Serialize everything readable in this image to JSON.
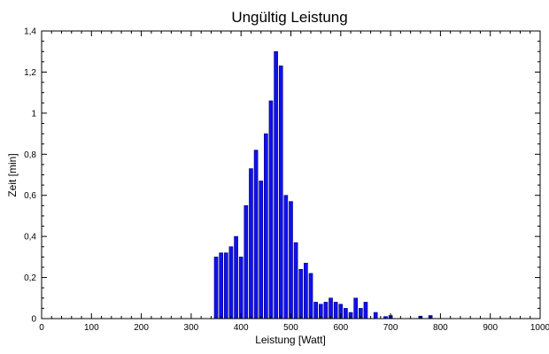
{
  "chart_data": {
    "type": "bar",
    "title": "Ungültig Leistung",
    "xlabel": "Leistung [Watt]",
    "ylabel": "Zeit [min]",
    "xlim": [
      0,
      1000
    ],
    "ylim": [
      0,
      1.4
    ],
    "x_ticks": [
      "0",
      "100",
      "200",
      "300",
      "400",
      "500",
      "600",
      "700",
      "800",
      "900",
      "1000"
    ],
    "y_ticks": [
      "0",
      "0,2",
      "0,4",
      "0,6",
      "0,8",
      "1",
      "1,2",
      "1,4"
    ],
    "grid": false,
    "bar_color": "#1010ee",
    "bar_edge_color": "#00007a",
    "bin_width": 10,
    "bars": [
      {
        "x": 350,
        "y": 0.3
      },
      {
        "x": 360,
        "y": 0.32
      },
      {
        "x": 370,
        "y": 0.32
      },
      {
        "x": 380,
        "y": 0.35
      },
      {
        "x": 390,
        "y": 0.4
      },
      {
        "x": 400,
        "y": 0.3
      },
      {
        "x": 410,
        "y": 0.55
      },
      {
        "x": 420,
        "y": 0.73
      },
      {
        "x": 430,
        "y": 0.82
      },
      {
        "x": 440,
        "y": 0.67
      },
      {
        "x": 450,
        "y": 0.9
      },
      {
        "x": 460,
        "y": 1.06
      },
      {
        "x": 470,
        "y": 1.3
      },
      {
        "x": 480,
        "y": 1.23
      },
      {
        "x": 490,
        "y": 0.6
      },
      {
        "x": 500,
        "y": 0.57
      },
      {
        "x": 510,
        "y": 0.37
      },
      {
        "x": 520,
        "y": 0.24
      },
      {
        "x": 530,
        "y": 0.27
      },
      {
        "x": 540,
        "y": 0.22
      },
      {
        "x": 550,
        "y": 0.08
      },
      {
        "x": 560,
        "y": 0.07
      },
      {
        "x": 570,
        "y": 0.08
      },
      {
        "x": 580,
        "y": 0.1
      },
      {
        "x": 590,
        "y": 0.08
      },
      {
        "x": 600,
        "y": 0.07
      },
      {
        "x": 610,
        "y": 0.05
      },
      {
        "x": 620,
        "y": 0.03
      },
      {
        "x": 630,
        "y": 0.1
      },
      {
        "x": 640,
        "y": 0.05
      },
      {
        "x": 650,
        "y": 0.08
      },
      {
        "x": 670,
        "y": 0.03
      },
      {
        "x": 690,
        "y": 0.01
      },
      {
        "x": 700,
        "y": 0.015
      },
      {
        "x": 760,
        "y": 0.012
      },
      {
        "x": 780,
        "y": 0.015
      }
    ]
  }
}
